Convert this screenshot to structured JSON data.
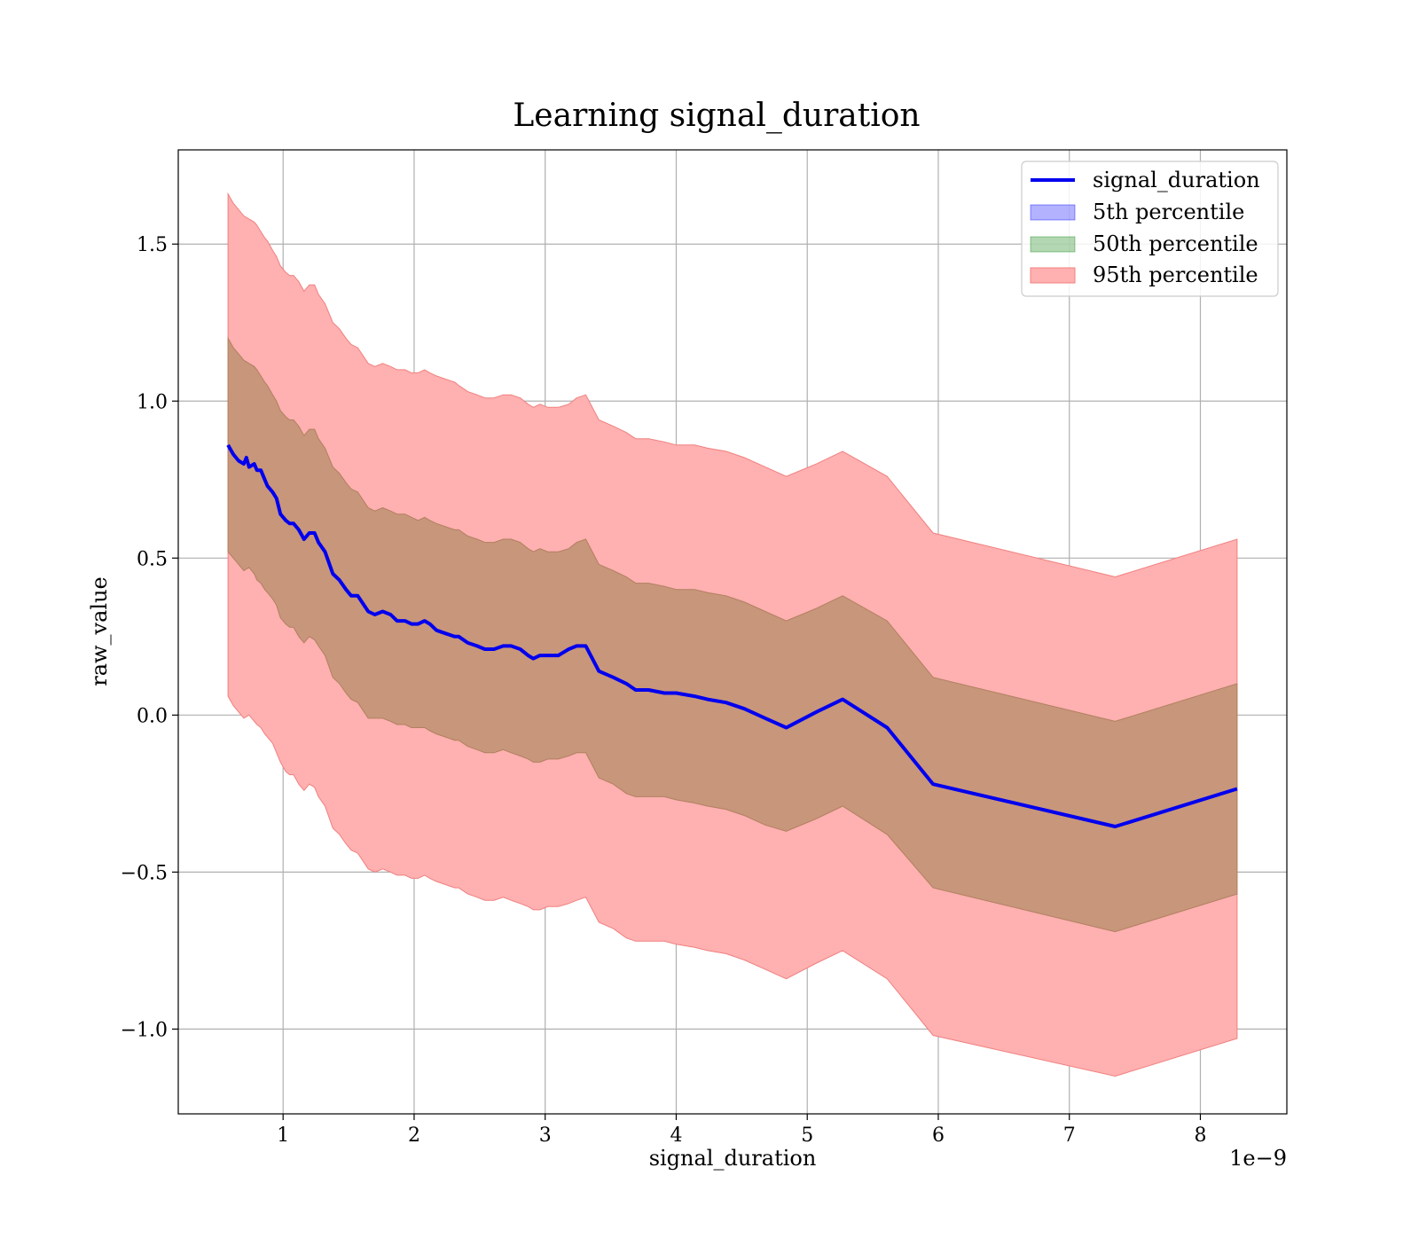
{
  "chart_data": {
    "type": "line",
    "title": "Learning signal_duration",
    "xlabel": "signal_duration",
    "ylabel": "raw_value",
    "x_offset_label": "1e−9",
    "xlim": [
      0.2,
      8.66
    ],
    "ylim": [
      -1.27,
      1.8
    ],
    "xticks": [
      1,
      2,
      3,
      4,
      5,
      6,
      7,
      8
    ],
    "xtick_labels": [
      "1",
      "2",
      "3",
      "4",
      "5",
      "6",
      "7",
      "8"
    ],
    "yticks": [
      -1.0,
      -0.5,
      0.0,
      0.5,
      1.0,
      1.5
    ],
    "ytick_labels": [
      "−1.0",
      "−0.5",
      "0.0",
      "0.5",
      "1.0",
      "1.5"
    ],
    "grid": true,
    "legend_position": "top-right",
    "legend": [
      "signal_duration",
      "5th percentile",
      "50th percentile",
      "95th percentile"
    ],
    "colors": {
      "line": "#0000ee",
      "band_5": "#8080ff",
      "band_50": "#88bb88",
      "band_50_blend": "#c8967b",
      "band_95": "#ffb0b0",
      "band_95_edge": "#f08080"
    },
    "series": [
      {
        "name": "signal_duration",
        "x": [
          0.58,
          0.62,
          0.66,
          0.7,
          0.72,
          0.74,
          0.78,
          0.8,
          0.83,
          0.86,
          0.88,
          0.92,
          0.95,
          0.98,
          1.02,
          1.05,
          1.08,
          1.12,
          1.16,
          1.2,
          1.24,
          1.27,
          1.32,
          1.38,
          1.43,
          1.48,
          1.52,
          1.57,
          1.65,
          1.7,
          1.76,
          1.82,
          1.87,
          1.93,
          1.98,
          2.03,
          2.08,
          2.12,
          2.17,
          2.24,
          2.31,
          2.34,
          2.41,
          2.48,
          2.54,
          2.61,
          2.68,
          2.74,
          2.81,
          2.87,
          2.91,
          2.96,
          3.02,
          3.1,
          3.18,
          3.24,
          3.31,
          3.41,
          3.52,
          3.62,
          3.69,
          3.79,
          3.91,
          4.0,
          4.14,
          4.24,
          4.38,
          4.52,
          4.68,
          4.84,
          5.07,
          5.27,
          5.61,
          5.96,
          7.35,
          8.28
        ],
        "y": [
          0.86,
          0.83,
          0.81,
          0.8,
          0.82,
          0.79,
          0.8,
          0.78,
          0.78,
          0.75,
          0.73,
          0.71,
          0.69,
          0.64,
          0.62,
          0.61,
          0.61,
          0.59,
          0.56,
          0.58,
          0.58,
          0.55,
          0.52,
          0.45,
          0.43,
          0.4,
          0.38,
          0.38,
          0.33,
          0.32,
          0.33,
          0.32,
          0.3,
          0.3,
          0.29,
          0.29,
          0.3,
          0.29,
          0.27,
          0.26,
          0.25,
          0.25,
          0.23,
          0.22,
          0.21,
          0.21,
          0.22,
          0.22,
          0.21,
          0.19,
          0.18,
          0.19,
          0.19,
          0.19,
          0.21,
          0.22,
          0.22,
          0.14,
          0.12,
          0.1,
          0.08,
          0.08,
          0.07,
          0.07,
          0.06,
          0.05,
          0.04,
          0.02,
          -0.01,
          -0.04,
          0.01,
          0.05,
          -0.04,
          -0.22,
          -0.355,
          -0.235
        ]
      },
      {
        "name": "50th percentile",
        "x": [
          0.58,
          0.62,
          0.66,
          0.7,
          0.74,
          0.78,
          0.8,
          0.83,
          0.86,
          0.88,
          0.92,
          0.95,
          0.98,
          1.02,
          1.05,
          1.08,
          1.12,
          1.16,
          1.2,
          1.24,
          1.27,
          1.32,
          1.38,
          1.43,
          1.48,
          1.52,
          1.57,
          1.65,
          1.7,
          1.76,
          1.82,
          1.87,
          1.93,
          1.98,
          2.03,
          2.08,
          2.12,
          2.17,
          2.24,
          2.31,
          2.34,
          2.41,
          2.48,
          2.54,
          2.61,
          2.68,
          2.74,
          2.81,
          2.87,
          2.91,
          2.96,
          3.02,
          3.1,
          3.18,
          3.24,
          3.31,
          3.41,
          3.52,
          3.62,
          3.69,
          3.79,
          3.91,
          4.0,
          4.14,
          4.24,
          4.38,
          4.52,
          4.68,
          4.84,
          5.07,
          5.27,
          5.61,
          5.96,
          7.35,
          8.28
        ],
        "lower": [
          0.52,
          0.5,
          0.48,
          0.46,
          0.47,
          0.45,
          0.43,
          0.42,
          0.4,
          0.39,
          0.37,
          0.35,
          0.31,
          0.29,
          0.28,
          0.28,
          0.25,
          0.23,
          0.25,
          0.24,
          0.22,
          0.19,
          0.12,
          0.1,
          0.07,
          0.05,
          0.04,
          -0.01,
          -0.01,
          -0.01,
          -0.02,
          -0.03,
          -0.03,
          -0.04,
          -0.04,
          -0.04,
          -0.05,
          -0.06,
          -0.07,
          -0.08,
          -0.08,
          -0.1,
          -0.11,
          -0.12,
          -0.12,
          -0.11,
          -0.12,
          -0.13,
          -0.14,
          -0.15,
          -0.15,
          -0.14,
          -0.14,
          -0.13,
          -0.12,
          -0.12,
          -0.2,
          -0.22,
          -0.25,
          -0.26,
          -0.26,
          -0.26,
          -0.27,
          -0.28,
          -0.29,
          -0.3,
          -0.32,
          -0.35,
          -0.37,
          -0.33,
          -0.29,
          -0.38,
          -0.55,
          -0.69,
          -0.57
        ],
        "upper": [
          1.2,
          1.17,
          1.15,
          1.13,
          1.12,
          1.11,
          1.1,
          1.08,
          1.06,
          1.05,
          1.02,
          1.0,
          0.97,
          0.95,
          0.94,
          0.94,
          0.92,
          0.89,
          0.91,
          0.91,
          0.88,
          0.85,
          0.79,
          0.77,
          0.74,
          0.72,
          0.71,
          0.66,
          0.65,
          0.66,
          0.65,
          0.64,
          0.64,
          0.63,
          0.62,
          0.63,
          0.62,
          0.61,
          0.6,
          0.59,
          0.59,
          0.57,
          0.56,
          0.55,
          0.55,
          0.56,
          0.56,
          0.55,
          0.53,
          0.52,
          0.53,
          0.52,
          0.52,
          0.53,
          0.55,
          0.56,
          0.48,
          0.46,
          0.44,
          0.42,
          0.42,
          0.41,
          0.4,
          0.4,
          0.39,
          0.38,
          0.36,
          0.33,
          0.3,
          0.34,
          0.38,
          0.3,
          0.12,
          -0.02,
          0.1
        ]
      },
      {
        "name": "95th percentile",
        "x": [
          0.58,
          0.62,
          0.66,
          0.7,
          0.74,
          0.78,
          0.8,
          0.83,
          0.86,
          0.88,
          0.92,
          0.95,
          0.98,
          1.02,
          1.05,
          1.08,
          1.12,
          1.16,
          1.2,
          1.24,
          1.27,
          1.32,
          1.38,
          1.43,
          1.48,
          1.52,
          1.57,
          1.65,
          1.7,
          1.76,
          1.82,
          1.87,
          1.93,
          1.98,
          2.03,
          2.08,
          2.12,
          2.17,
          2.24,
          2.31,
          2.34,
          2.41,
          2.48,
          2.54,
          2.61,
          2.68,
          2.74,
          2.81,
          2.87,
          2.91,
          2.96,
          3.02,
          3.1,
          3.18,
          3.24,
          3.31,
          3.41,
          3.52,
          3.62,
          3.69,
          3.79,
          3.91,
          4.0,
          4.14,
          4.24,
          4.38,
          4.52,
          4.68,
          4.84,
          5.07,
          5.27,
          5.61,
          5.96,
          7.35,
          8.28
        ],
        "lower": [
          0.06,
          0.03,
          0.01,
          -0.01,
          0.0,
          -0.02,
          -0.03,
          -0.04,
          -0.06,
          -0.07,
          -0.09,
          -0.12,
          -0.15,
          -0.18,
          -0.19,
          -0.19,
          -0.22,
          -0.24,
          -0.22,
          -0.23,
          -0.26,
          -0.29,
          -0.36,
          -0.38,
          -0.41,
          -0.43,
          -0.44,
          -0.49,
          -0.5,
          -0.49,
          -0.5,
          -0.51,
          -0.51,
          -0.52,
          -0.52,
          -0.51,
          -0.52,
          -0.53,
          -0.54,
          -0.55,
          -0.55,
          -0.57,
          -0.58,
          -0.59,
          -0.59,
          -0.58,
          -0.59,
          -0.6,
          -0.61,
          -0.62,
          -0.62,
          -0.61,
          -0.61,
          -0.6,
          -0.59,
          -0.58,
          -0.66,
          -0.68,
          -0.71,
          -0.72,
          -0.72,
          -0.72,
          -0.73,
          -0.74,
          -0.75,
          -0.76,
          -0.78,
          -0.81,
          -0.84,
          -0.79,
          -0.75,
          -0.84,
          -1.02,
          -1.15,
          -1.03
        ],
        "upper": [
          1.66,
          1.63,
          1.61,
          1.59,
          1.58,
          1.57,
          1.56,
          1.54,
          1.52,
          1.51,
          1.48,
          1.46,
          1.43,
          1.41,
          1.4,
          1.4,
          1.38,
          1.35,
          1.37,
          1.37,
          1.34,
          1.31,
          1.25,
          1.23,
          1.2,
          1.18,
          1.17,
          1.12,
          1.11,
          1.12,
          1.11,
          1.1,
          1.1,
          1.09,
          1.09,
          1.1,
          1.09,
          1.08,
          1.07,
          1.06,
          1.05,
          1.03,
          1.02,
          1.01,
          1.01,
          1.02,
          1.02,
          1.01,
          0.99,
          0.98,
          0.99,
          0.98,
          0.98,
          0.99,
          1.01,
          1.02,
          0.94,
          0.92,
          0.9,
          0.88,
          0.88,
          0.87,
          0.86,
          0.86,
          0.85,
          0.84,
          0.82,
          0.79,
          0.76,
          0.8,
          0.84,
          0.76,
          0.58,
          0.44,
          0.56
        ]
      }
    ]
  }
}
